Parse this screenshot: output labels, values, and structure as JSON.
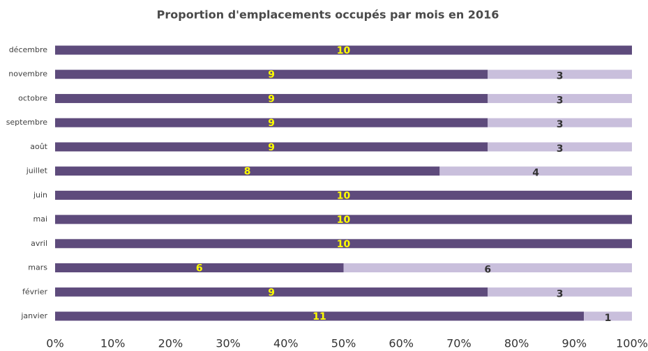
{
  "chart_data": {
    "type": "bar",
    "orientation": "horizontal",
    "stacking": "percent",
    "title": "Proportion d'emplacements occupés par mois en 2016",
    "categories": [
      "janvier",
      "février",
      "mars",
      "avril",
      "mai",
      "juin",
      "juillet",
      "août",
      "septembre",
      "octobre",
      "novembre",
      "décembre"
    ],
    "series": [
      {
        "color": "#5e4b7c",
        "label_color": "#ffff00",
        "values": [
          11,
          9,
          6,
          10,
          10,
          10,
          8,
          9,
          9,
          9,
          9,
          10
        ]
      },
      {
        "color": "#c9bfdc",
        "label_color": "#333333",
        "values": [
          1,
          3,
          6,
          0,
          0,
          0,
          4,
          3,
          3,
          3,
          3,
          0
        ]
      }
    ],
    "xlim": [
      0,
      100
    ],
    "xticks": [
      {
        "value": 0,
        "label": "0%"
      },
      {
        "value": 10,
        "label": "10%"
      },
      {
        "value": 20,
        "label": "20%"
      },
      {
        "value": 30,
        "label": "30%"
      },
      {
        "value": 40,
        "label": "40%"
      },
      {
        "value": 50,
        "label": "50%"
      },
      {
        "value": 60,
        "label": "60%"
      },
      {
        "value": 70,
        "label": "70%"
      },
      {
        "value": 80,
        "label": "80%"
      },
      {
        "value": 90,
        "label": "90%"
      },
      {
        "value": 100,
        "label": "100%"
      }
    ],
    "grid": false
  }
}
